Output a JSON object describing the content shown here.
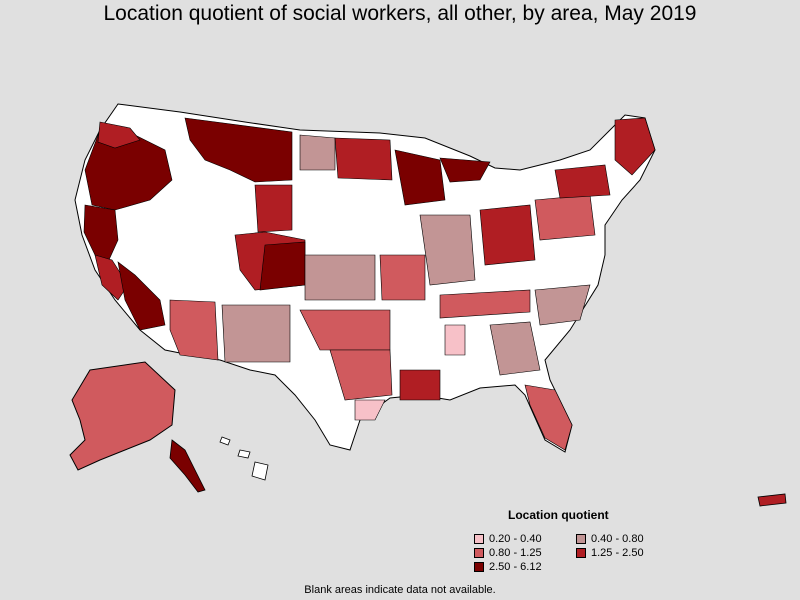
{
  "title": "Location quotient of social workers, all other, by area, May 2019",
  "legend": {
    "title": "Location quotient",
    "items": [
      {
        "label": "0.20 - 0.40",
        "color": "#f7c1c8"
      },
      {
        "label": "0.40 - 0.80",
        "color": "#c29595"
      },
      {
        "label": "0.80 - 1.25",
        "color": "#d05a5e"
      },
      {
        "label": "1.25 - 2.50",
        "color": "#b01e23"
      },
      {
        "label": "2.50 - 6.12",
        "color": "#7a0000"
      }
    ]
  },
  "footnote": "Blank areas indicate data not available.",
  "colors": {
    "background": "#e0e0e0",
    "blank": "#ffffff",
    "border": "#000000"
  }
}
